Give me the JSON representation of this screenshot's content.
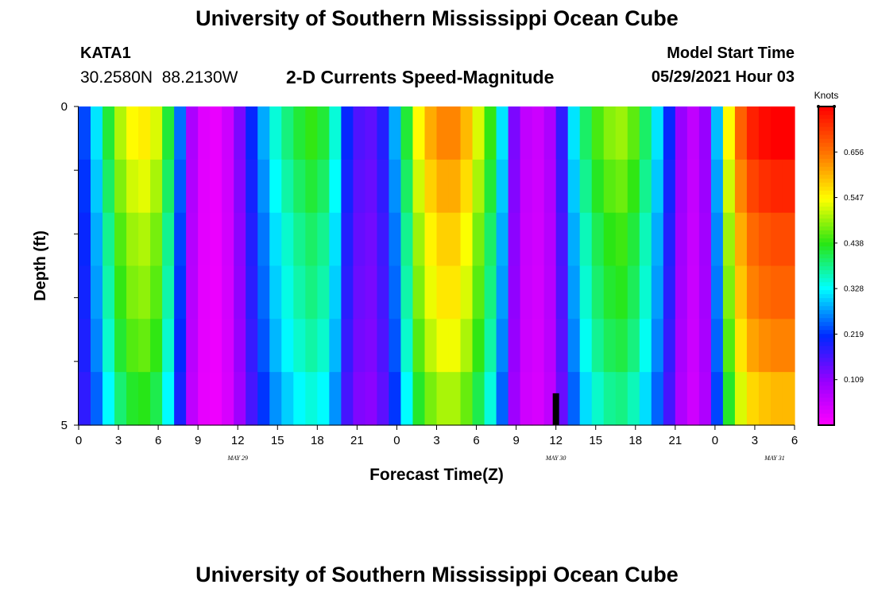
{
  "header": {
    "title": "University of Southern Mississippi Ocean Cube",
    "station_id": "KATA1",
    "coordinates": "30.2580N  88.2130W",
    "plot_title": "2-D Currents Speed-Magnitude",
    "model_start_label": "Model Start Time",
    "model_start_value": "05/29/2021 Hour 03"
  },
  "footer": {
    "title": "University of Southern Mississippi Ocean Cube"
  },
  "chart_data": {
    "type": "heatmap",
    "title": "2-D Currents Speed-Magnitude",
    "xlabel": "Forecast Time(Z)",
    "ylabel": "Depth (ft)",
    "x_hours": [
      0,
      54
    ],
    "y_range": [
      0,
      5
    ],
    "y_ticks": [
      {
        "value": 0,
        "label": "0"
      },
      {
        "value": 1,
        "label": ""
      },
      {
        "value": 2,
        "label": ""
      },
      {
        "value": 3,
        "label": ""
      },
      {
        "value": 4,
        "label": ""
      },
      {
        "value": 5,
        "label": "5"
      }
    ],
    "x_ticks": [
      "0",
      "3",
      "6",
      "9",
      "12",
      "15",
      "18",
      "21",
      "0",
      "3",
      "6",
      "9",
      "12",
      "15",
      "18",
      "21",
      "0",
      "3",
      "6"
    ],
    "date_labels": [
      {
        "hour": 12,
        "label": "MAY 29"
      },
      {
        "hour": 36,
        "label": "MAY 30"
      },
      {
        "hour": 52.5,
        "label": "MAY 31"
      }
    ],
    "colorbar": {
      "unit": "Knots",
      "min": 0,
      "max": 0.7652,
      "ticks": [
        "0.109",
        "0.219",
        "0.328",
        "0.438",
        "0.547",
        "0.656"
      ]
    },
    "depth_factors": [
      1.05,
      1.0,
      0.95,
      0.92,
      0.88,
      0.82
    ],
    "speed_by_hour": [
      0.22,
      0.3,
      0.4,
      0.48,
      0.52,
      0.53,
      0.5,
      0.4,
      0.24,
      0.08,
      0.03,
      0.02,
      0.05,
      0.12,
      0.2,
      0.27,
      0.33,
      0.37,
      0.4,
      0.42,
      0.4,
      0.33,
      0.2,
      0.15,
      0.14,
      0.18,
      0.27,
      0.4,
      0.52,
      0.58,
      0.61,
      0.61,
      0.57,
      0.5,
      0.42,
      0.3,
      0.12,
      0.06,
      0.05,
      0.08,
      0.17,
      0.3,
      0.38,
      0.43,
      0.46,
      0.47,
      0.44,
      0.38,
      0.3,
      0.2,
      0.1,
      0.06,
      0.1,
      0.28,
      0.52,
      0.64,
      0.7,
      0.72,
      0.73,
      0.73
    ],
    "marker": {
      "hour": 36,
      "depth_from": 4.5,
      "depth_to": 5
    }
  }
}
